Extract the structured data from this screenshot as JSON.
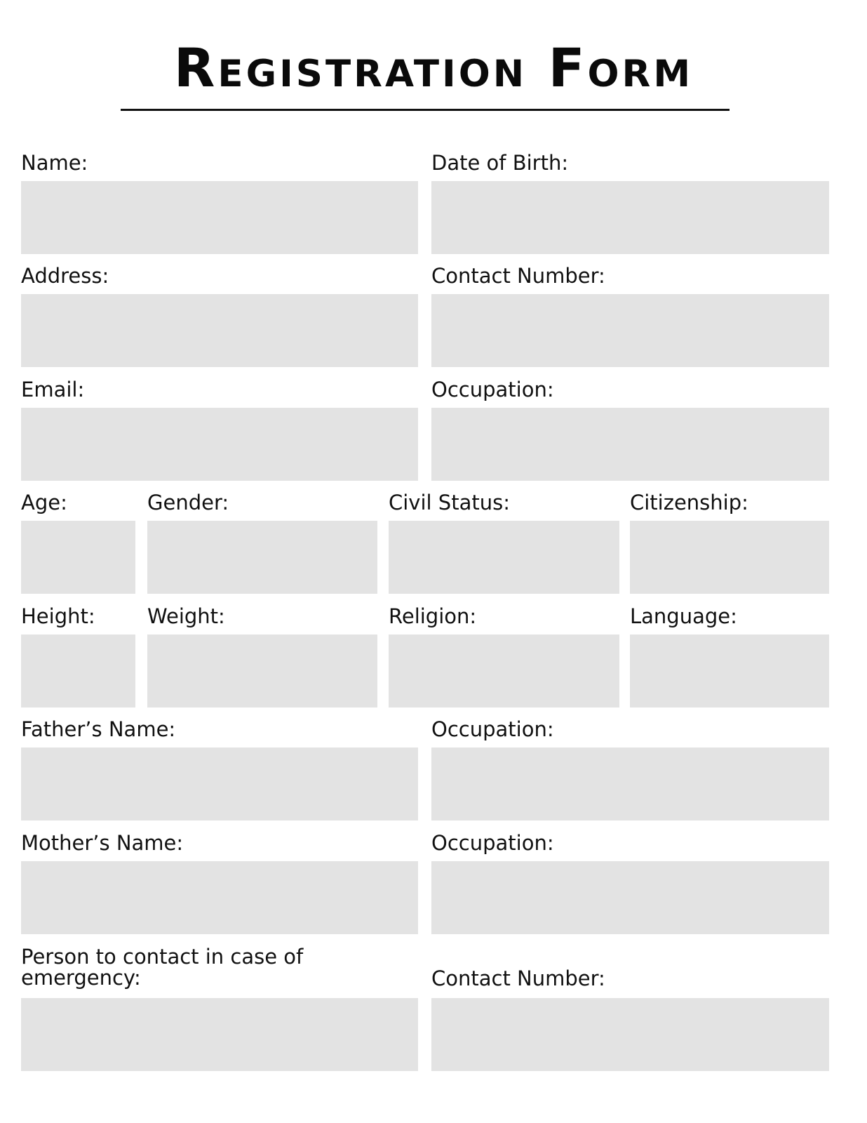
{
  "title": "Registration Form",
  "colors": {
    "field_fill": "#e3e3e3",
    "text": "#111111"
  },
  "fields": {
    "name": "Name:",
    "date_of_birth": "Date of Birth:",
    "address": "Address:",
    "contact_number": "Contact Number:",
    "email": "Email:",
    "occupation": "Occupation:",
    "age": "Age:",
    "gender": "Gender:",
    "civil_status": "Civil Status:",
    "citizenship": "Citizenship:",
    "height": "Height:",
    "weight": "Weight:",
    "religion": "Religion:",
    "language": "Language:",
    "fathers_name": "Father’s Name:",
    "fathers_occupation": "Occupation:",
    "mothers_name": "Mother’s Name:",
    "mothers_occupation": "Occupation:",
    "emergency_contact_line1": "Person to contact in case of",
    "emergency_contact_line2": "emergency:",
    "emergency_contact_number": "Contact Number:"
  }
}
